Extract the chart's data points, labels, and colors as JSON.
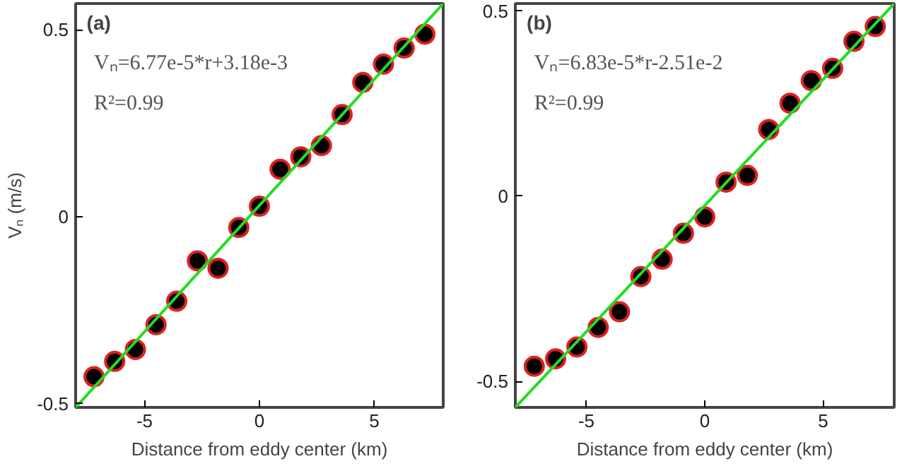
{
  "chart_data": [
    {
      "type": "scatter",
      "title": "(a)",
      "xlabel": "Distance from eddy center (km)",
      "ylabel": "Vₙ (m/s)",
      "annotations": [
        "Vₙ=6.77e-5*r+3.18e-3",
        "R²=0.99"
      ],
      "xlim": [
        -8,
        8
      ],
      "ylim": [
        -0.51,
        0.57
      ],
      "xticks": [
        -5,
        0,
        5
      ],
      "yticks": [
        -0.5,
        0,
        0.5
      ],
      "grid": false,
      "series": [
        {
          "marker": "circle",
          "color": "#000000",
          "x": [
            -7.2,
            -6.3,
            -5.4,
            -4.5,
            -3.6,
            -2.7,
            -1.8,
            -0.9,
            0,
            0.9,
            1.8,
            2.7,
            3.6,
            4.5,
            5.4,
            6.3,
            7.2
          ],
          "values": [
            -0.428,
            -0.387,
            -0.355,
            -0.289,
            -0.226,
            -0.118,
            -0.138,
            -0.029,
            0.028,
            0.127,
            0.16,
            0.19,
            0.273,
            0.359,
            0.408,
            0.451,
            0.488
          ]
        },
        {
          "type": "line",
          "color": "#22dd22",
          "x": [
            -8,
            8
          ],
          "values": [
            -0.51,
            0.57
          ]
        }
      ]
    },
    {
      "type": "scatter",
      "title": "(b)",
      "xlabel": "Distance from eddy center (km)",
      "annotations": [
        "Vₙ=6.83e-5*r-2.51e-2",
        "R²=0.99"
      ],
      "xlim": [
        -8,
        8
      ],
      "ylim": [
        -0.57,
        0.52
      ],
      "xticks": [
        -5,
        0,
        5
      ],
      "yticks": [
        -0.5,
        0,
        0.5
      ],
      "grid": false,
      "series": [
        {
          "marker": "circle",
          "color": "#000000",
          "x": [
            -7.2,
            -6.3,
            -5.4,
            -4.5,
            -3.6,
            -2.7,
            -1.8,
            -0.9,
            0,
            0.9,
            1.8,
            2.7,
            3.6,
            4.5,
            5.4,
            6.3,
            7.2
          ],
          "values": [
            -0.459,
            -0.439,
            -0.407,
            -0.354,
            -0.312,
            -0.217,
            -0.17,
            -0.1,
            -0.056,
            0.038,
            0.056,
            0.18,
            0.251,
            0.312,
            0.345,
            0.418,
            0.458
          ]
        },
        {
          "type": "line",
          "color": "#22dd22",
          "x": [
            -8,
            8
          ],
          "values": [
            -0.57,
            0.52
          ]
        }
      ]
    }
  ]
}
